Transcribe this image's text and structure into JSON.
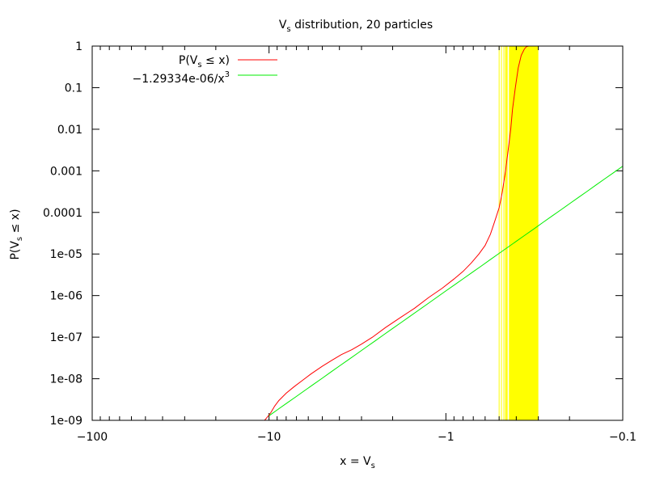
{
  "chart_data": {
    "type": "line",
    "title": "V",
    "title_sub": "s",
    "title_rest": " distribution, 20 particles",
    "xlabel": "x = V",
    "xlabel_sub": "s",
    "ylabel": "P(V",
    "ylabel_sub": "s",
    "ylabel_rest": " ≤ x)",
    "x_scale": "log-negative",
    "y_scale": "log",
    "xlim": [
      -100,
      -0.1
    ],
    "ylim": [
      1e-09,
      1
    ],
    "x_ticks": [
      -100,
      -10,
      -1,
      -0.1
    ],
    "x_tick_labels": [
      "−100",
      "−10",
      "−1",
      "−0.1"
    ],
    "y_ticks": [
      1e-09,
      1e-08,
      1e-07,
      1e-06,
      1e-05,
      0.0001,
      0.001,
      0.01,
      0.1,
      1
    ],
    "y_tick_labels": [
      "1e-09",
      "1e-08",
      "1e-07",
      "1e-06",
      "1e-05",
      "0.0001",
      "0.001",
      "0.01",
      "0.1",
      "1"
    ],
    "legend_position": "top-left",
    "series": [
      {
        "name": "P(V",
        "name_sub": "s",
        "name_rest": " ≤ x)",
        "color": "#ff0000",
        "points": [
          [
            -10.6,
            1e-09
          ],
          [
            -10.4,
            1.1e-09
          ],
          [
            -9.8,
            1.5e-09
          ],
          [
            -9.3,
            2.2e-09
          ],
          [
            -8.8,
            3e-09
          ],
          [
            -8.0,
            4.5e-09
          ],
          [
            -7.2,
            6.5e-09
          ],
          [
            -6.5,
            9e-09
          ],
          [
            -5.8,
            1.3e-08
          ],
          [
            -5.0,
            2e-08
          ],
          [
            -4.4,
            2.8e-08
          ],
          [
            -3.9,
            3.8e-08
          ],
          [
            -3.4,
            5e-08
          ],
          [
            -3.0,
            6.8e-08
          ],
          [
            -2.6,
            1e-07
          ],
          [
            -2.2,
            1.7e-07
          ],
          [
            -1.8,
            3e-07
          ],
          [
            -1.5,
            5e-07
          ],
          [
            -1.25,
            9e-07
          ],
          [
            -1.05,
            1.5e-06
          ],
          [
            -0.9,
            2.5e-06
          ],
          [
            -0.8,
            3.8e-06
          ],
          [
            -0.72,
            6e-06
          ],
          [
            -0.65,
            1e-05
          ],
          [
            -0.6,
            1.6e-05
          ],
          [
            -0.56,
            3e-05
          ],
          [
            -0.53,
            6e-05
          ],
          [
            -0.5,
            0.00013
          ],
          [
            -0.48,
            0.0003
          ],
          [
            -0.46,
            0.001
          ],
          [
            -0.445,
            0.003
          ],
          [
            -0.43,
            0.01
          ],
          [
            -0.42,
            0.03
          ],
          [
            -0.405,
            0.1
          ],
          [
            -0.39,
            0.3
          ],
          [
            -0.375,
            0.6
          ],
          [
            -0.36,
            0.85
          ],
          [
            -0.35,
            0.97
          ],
          [
            -0.34,
            1.0
          ],
          [
            -0.3,
            1.0
          ]
        ]
      },
      {
        "name": "−1.29334e-06/x",
        "name_sup": "3",
        "color": "#00ee00",
        "function": {
          "coefficient": -1.29334e-06,
          "power": 3
        }
      }
    ],
    "bands": {
      "color": "#ffff00",
      "solid_range": [
        -0.44,
        -0.3
      ],
      "lines": [
        -0.5,
        -0.485,
        -0.47,
        -0.46,
        -0.455,
        -0.45
      ]
    }
  }
}
